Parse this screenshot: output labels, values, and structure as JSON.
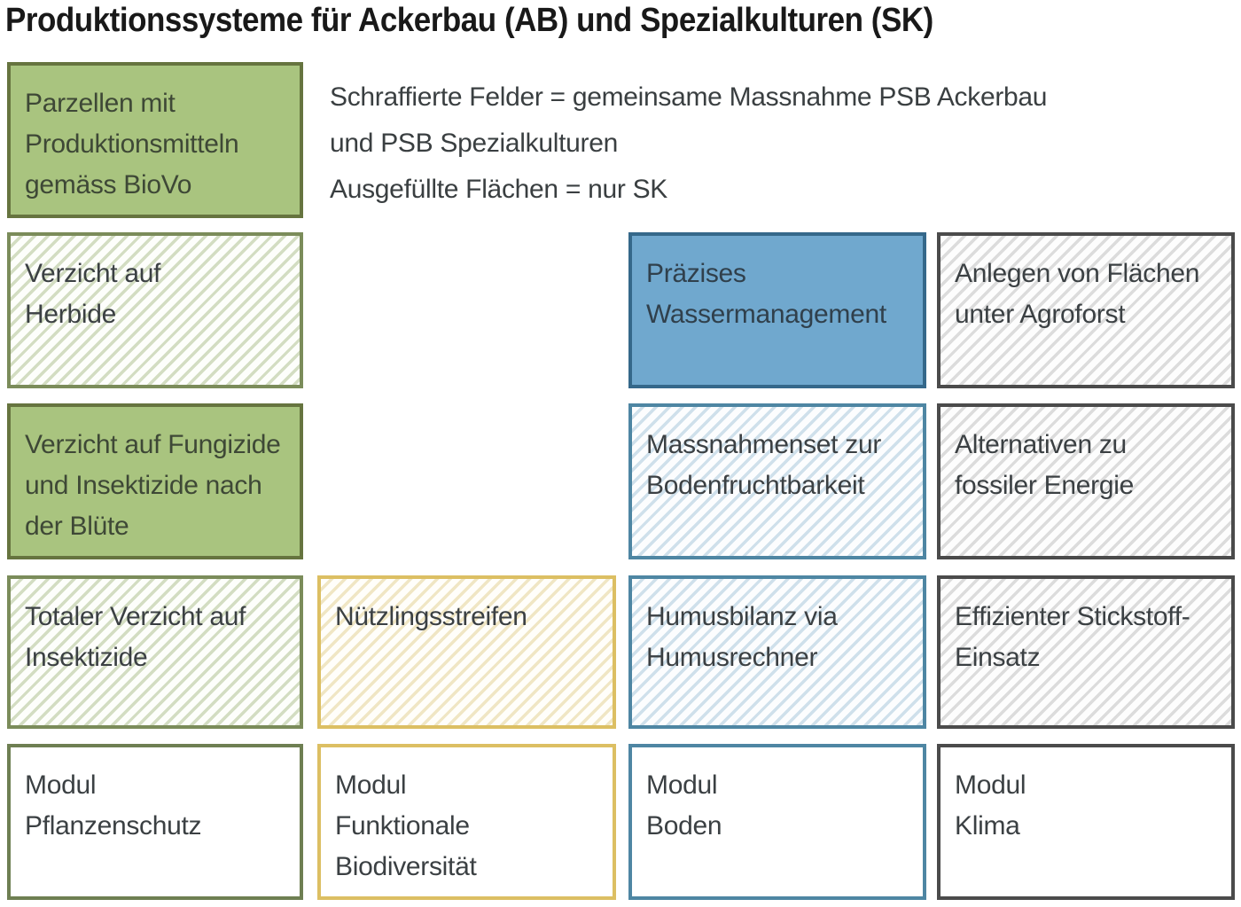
{
  "title": "Produktionssysteme für Ackerbau (AB) und Spezialkulturen (SK)",
  "legend": {
    "text": "Schraffierte Felder = gemeinsame Massnahme PSB Ackerbau\nund PSB Spezialkulturen\nAusgefüllte Flächen = nur SK"
  },
  "boxes": {
    "parzellen": {
      "label": "Parzellen mit\nProduktionsmitteln\ngemäss BioVo",
      "hatched": false,
      "group": "pflanzenschutz",
      "fill": "#a9c47f"
    },
    "herbide": {
      "label": "Verzicht auf\nHerbide",
      "hatched": true,
      "group": "pflanzenschutz",
      "line_color": "#d3ddc2"
    },
    "wassermanagement": {
      "label": "Präzises\nWassermanagement",
      "hatched": false,
      "group": "boden",
      "fill": "#70a8ce"
    },
    "agroforst": {
      "label": "Anlegen von Flächen\nunter Agroforst",
      "hatched": true,
      "group": "klima",
      "line_color": "#dcdcdc"
    },
    "fungizide": {
      "label": "Verzicht auf Fungizide\nund Insektizide nach\nder Blüte",
      "hatched": false,
      "group": "pflanzenschutz",
      "fill": "#a9c47f"
    },
    "massnahmenset": {
      "label": "Massnahmenset zur\nBodenfruchtbarkeit",
      "hatched": true,
      "group": "boden",
      "line_color": "#cfe0eb"
    },
    "alternativen": {
      "label": "Alternativen zu\nfossiler Energie",
      "hatched": true,
      "group": "klima",
      "line_color": "#dcdcdc"
    },
    "insektizide": {
      "label": "Totaler Verzicht auf\nInsektizide",
      "hatched": true,
      "group": "pflanzenschutz",
      "line_color": "#d3ddc2"
    },
    "nuetzlingsstreifen": {
      "label": "Nützlingsstreifen",
      "hatched": true,
      "group": "biodiversitaet",
      "line_color": "#f0e6c4"
    },
    "humusbilanz": {
      "label": "Humusbilanz via\nHumusrechner",
      "hatched": true,
      "group": "boden",
      "line_color": "#cfe0eb"
    },
    "stickstoff": {
      "label": "Effizienter Stickstoff-\nEinsatz",
      "hatched": true,
      "group": "klima",
      "line_color": "#dcdcdc"
    },
    "modul_pflanzenschutz": {
      "label": "Modul\nPflanzenschutz",
      "hatched": false,
      "group": "pflanzenschutz",
      "border": "#6e7f52"
    },
    "modul_biodiversitaet": {
      "label": "Modul\nFunktionale\nBiodiversität",
      "hatched": false,
      "group": "biodiversitaet",
      "border": "#dcbf63"
    },
    "modul_boden": {
      "label": "Modul\nBoden",
      "hatched": false,
      "group": "boden",
      "border": "#4e86a3"
    },
    "modul_klima": {
      "label": "Modul\nKlima",
      "hatched": false,
      "group": "klima",
      "border": "#4b4b4b"
    }
  },
  "colors": {
    "green_fill": "#a9c47f",
    "green_border": "#66743f",
    "green_hatch_border": "#7b8c5a",
    "blue_fill": "#70a8ce",
    "blue_border": "#35688a",
    "blue_hatch_border": "#4e86a3",
    "yellow_border": "#dcbf63",
    "gray_border": "#4b4b4b",
    "text": "#3b4043"
  }
}
